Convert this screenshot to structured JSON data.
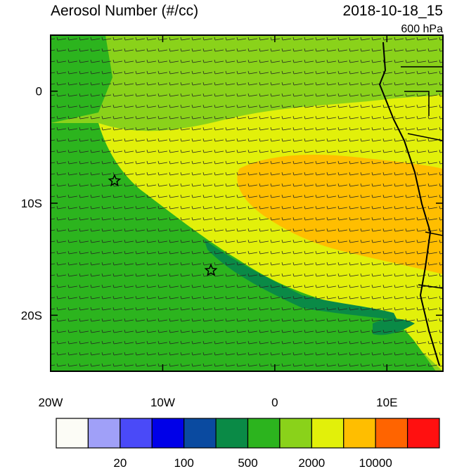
{
  "header": {
    "title": "Aerosol Number (#/cc)",
    "date": "2018-10-18_15",
    "level": "600 hPa"
  },
  "map": {
    "lon_range": [
      -20,
      15
    ],
    "lat_range": [
      -25,
      5
    ],
    "xticks": [
      {
        "value": -20,
        "label": "20W"
      },
      {
        "value": -10,
        "label": "10W"
      },
      {
        "value": 0,
        "label": "0"
      },
      {
        "value": 10,
        "label": "10E"
      }
    ],
    "yticks": [
      {
        "value": 0,
        "label": "0"
      },
      {
        "value": -10,
        "label": "10S"
      },
      {
        "value": -20,
        "label": "20S"
      }
    ],
    "markers": [
      {
        "lon": -14.3,
        "lat": -8.0
      },
      {
        "lon": -5.7,
        "lat": -16.0
      }
    ]
  },
  "colorbar": {
    "colors": [
      "#fcfcf6",
      "#a0a0f8",
      "#4a4af8",
      "#0000e8",
      "#0a4aa0",
      "#0a8a46",
      "#2cb41e",
      "#8ad21a",
      "#e2f00a",
      "#ffbe00",
      "#ff6400",
      "#ff1010"
    ],
    "labels": [
      "20",
      "100",
      "500",
      "2000",
      "10000"
    ]
  }
}
